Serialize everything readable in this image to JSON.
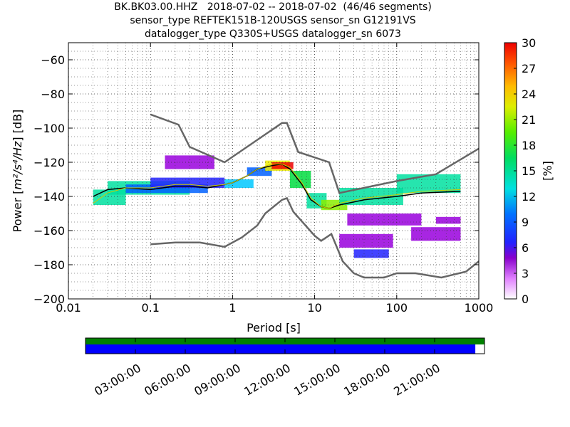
{
  "title_lines": [
    "BK.BK03.00.HHZ   2018-07-02 -- 2018-07-02  (46/46 segments)",
    "sensor_type REFTEK151B-120USGS sensor_sn G12191VS",
    "datalogger_type Q330S+USGS datalogger_sn 6073"
  ],
  "chart_data": {
    "type": "heatmap",
    "xlabel": "Period [s]",
    "ylabel_prefix": "Power [",
    "ylabel_units": "m²/s⁴/Hz",
    "ylabel_suffix": "] [dB]",
    "x_scale": "log",
    "xlim": [
      0.01,
      1000
    ],
    "ylim": [
      -200,
      -50
    ],
    "x_ticks": [
      0.01,
      0.1,
      1,
      10,
      100,
      1000
    ],
    "x_tick_labels": [
      "0.01",
      "0.1",
      "1",
      "10",
      "100",
      "1000"
    ],
    "y_ticks": [
      -200,
      -180,
      -160,
      -140,
      -120,
      -100,
      -80,
      -60
    ],
    "y_tick_labels": [
      "−200",
      "−180",
      "−160",
      "−140",
      "−120",
      "−100",
      "−80",
      "−60"
    ],
    "grid": "dotted",
    "colorbar": {
      "label": "[%]",
      "range": [
        0,
        30
      ],
      "ticks": [
        0,
        3,
        6,
        9,
        12,
        15,
        18,
        21,
        24,
        27,
        30
      ],
      "tick_labels": [
        "0",
        "3",
        "6",
        "9",
        "12",
        "15",
        "18",
        "21",
        "24",
        "27",
        "30"
      ]
    },
    "noise_model_high": [
      [
        0.1,
        -92
      ],
      [
        0.22,
        -98
      ],
      [
        0.3,
        -111
      ],
      [
        0.8,
        -120
      ],
      [
        4,
        -97
      ],
      [
        4.6,
        -97
      ],
      [
        6.3,
        -114
      ],
      [
        15,
        -120
      ],
      [
        20,
        -138
      ],
      [
        100,
        -131
      ],
      [
        300,
        -127
      ],
      [
        1000,
        -112
      ]
    ],
    "noise_model_low": [
      [
        0.1,
        -168
      ],
      [
        0.2,
        -167
      ],
      [
        0.4,
        -167
      ],
      [
        0.8,
        -169.5
      ],
      [
        1.3,
        -164
      ],
      [
        2,
        -157
      ],
      [
        2.5,
        -150
      ],
      [
        4,
        -142
      ],
      [
        4.6,
        -141
      ],
      [
        5.5,
        -149
      ],
      [
        10,
        -163
      ],
      [
        12,
        -166
      ],
      [
        16,
        -162
      ],
      [
        22,
        -178
      ],
      [
        30,
        -185
      ],
      [
        40,
        -187.5
      ],
      [
        70,
        -187.5
      ],
      [
        100,
        -185
      ],
      [
        170,
        -185
      ],
      [
        350,
        -187.5
      ],
      [
        700,
        -184
      ],
      [
        1000,
        -178
      ]
    ],
    "median_psd": [
      [
        0.02,
        -140
      ],
      [
        0.03,
        -136
      ],
      [
        0.05,
        -135
      ],
      [
        0.1,
        -136
      ],
      [
        0.2,
        -134
      ],
      [
        0.3,
        -134
      ],
      [
        0.5,
        -135
      ],
      [
        0.8,
        -133
      ],
      [
        1,
        -132
      ],
      [
        1.5,
        -128
      ],
      [
        2,
        -124
      ],
      [
        3,
        -122
      ],
      [
        4,
        -121
      ],
      [
        5,
        -124
      ],
      [
        7,
        -133
      ],
      [
        9,
        -142
      ],
      [
        12,
        -146
      ],
      [
        15,
        -147
      ],
      [
        20,
        -145
      ],
      [
        40,
        -142
      ],
      [
        100,
        -140
      ],
      [
        200,
        -138
      ],
      [
        600,
        -137
      ]
    ],
    "mode_psd": [
      [
        0.02,
        -144
      ],
      [
        0.03,
        -138
      ],
      [
        0.05,
        -135
      ],
      [
        0.1,
        -135
      ],
      [
        0.2,
        -133
      ],
      [
        0.3,
        -133
      ],
      [
        0.5,
        -134
      ],
      [
        0.8,
        -133
      ],
      [
        1,
        -132
      ],
      [
        1.5,
        -128
      ],
      [
        2,
        -124
      ],
      [
        3,
        -121
      ],
      [
        4,
        -121
      ],
      [
        5,
        -123
      ],
      [
        7,
        -132
      ],
      [
        9,
        -141
      ],
      [
        12,
        -146
      ],
      [
        15,
        -147
      ],
      [
        20,
        -144
      ],
      [
        40,
        -141
      ],
      [
        100,
        -139
      ],
      [
        200,
        -137
      ],
      [
        600,
        -136
      ]
    ],
    "psd_bands": [
      {
        "x": [
          0.02,
          0.05
        ],
        "y": [
          -145,
          -136
        ],
        "pct": 14
      },
      {
        "x": [
          0.03,
          0.3
        ],
        "y": [
          -139,
          -131
        ],
        "pct": 14
      },
      {
        "x": [
          0.05,
          0.5
        ],
        "y": [
          -138,
          -133
        ],
        "pct": 9
      },
      {
        "x": [
          0.1,
          0.8
        ],
        "y": [
          -135,
          -129
        ],
        "pct": 5
      },
      {
        "x": [
          0.15,
          0.6
        ],
        "y": [
          -124,
          -116
        ],
        "pct": 2
      },
      {
        "x": [
          0.8,
          1.8
        ],
        "y": [
          -135,
          -130
        ],
        "pct": 11
      },
      {
        "x": [
          1.5,
          3
        ],
        "y": [
          -128,
          -123
        ],
        "pct": 8
      },
      {
        "x": [
          2.5,
          5
        ],
        "y": [
          -125,
          -119
        ],
        "pct": 22
      },
      {
        "x": [
          3,
          5.5
        ],
        "y": [
          -124,
          -120
        ],
        "pct": 29
      },
      {
        "x": [
          5,
          9
        ],
        "y": [
          -135,
          -125
        ],
        "pct": 16
      },
      {
        "x": [
          8,
          14
        ],
        "y": [
          -147,
          -138
        ],
        "pct": 13
      },
      {
        "x": [
          12,
          25
        ],
        "y": [
          -148,
          -142
        ],
        "pct": 19
      },
      {
        "x": [
          20,
          120
        ],
        "y": [
          -145,
          -135
        ],
        "pct": 13
      },
      {
        "x": [
          100,
          600
        ],
        "y": [
          -138,
          -127
        ],
        "pct": 14
      },
      {
        "x": [
          25,
          200
        ],
        "y": [
          -157,
          -150
        ],
        "pct": 1
      },
      {
        "x": [
          20,
          90
        ],
        "y": [
          -170,
          -162
        ],
        "pct": 2
      },
      {
        "x": [
          30,
          80
        ],
        "y": [
          -176,
          -171
        ],
        "pct": 4
      },
      {
        "x": [
          150,
          600
        ],
        "y": [
          -166,
          -158
        ],
        "pct": 2
      },
      {
        "x": [
          300,
          600
        ],
        "y": [
          -156,
          -152
        ],
        "pct": 1
      }
    ],
    "colors": {
      "noise_model": "#666666",
      "median": "#000000",
      "mode": "#cccc00",
      "grid": "#333333"
    }
  },
  "timeline": {
    "coverage_color": "#008000",
    "data_color": "#0000ff",
    "data_fraction": 0.977,
    "tick_labels": [
      "03:00:00",
      "06:00:00",
      "09:00:00",
      "12:00:00",
      "15:00:00",
      "18:00:00",
      "21:00:00"
    ],
    "tick_hours": [
      3,
      6,
      9,
      12,
      15,
      18,
      21
    ],
    "span_hours": 24
  }
}
